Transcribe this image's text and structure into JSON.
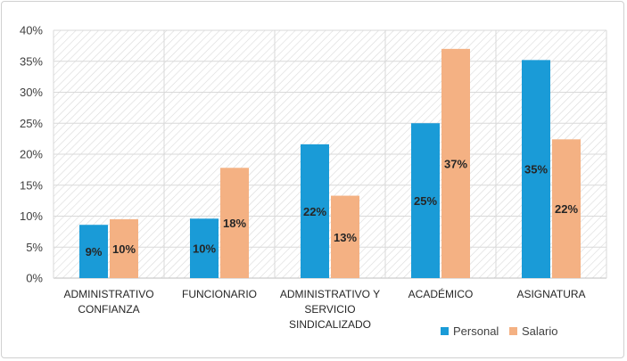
{
  "chart_data": {
    "type": "bar",
    "title": "",
    "xlabel": "",
    "ylabel": "",
    "categories": [
      [
        "ADMINISTRATIVO",
        "CONFIANZA"
      ],
      [
        "FUNCIONARIO"
      ],
      [
        "ADMINISTRATIVO Y",
        "SERVICIO",
        "SINDICALIZADO"
      ],
      [
        "ACADÉMICO"
      ],
      [
        "ASIGNATURA"
      ]
    ],
    "series": [
      {
        "name": "Personal",
        "color": "#1a9bd7",
        "values": [
          8.6,
          9.6,
          21.6,
          25.0,
          35.2
        ],
        "labels": [
          "9%",
          "10%",
          "22%",
          "25%",
          "35%"
        ]
      },
      {
        "name": "Salario",
        "color": "#f4b183",
        "values": [
          9.5,
          17.8,
          13.3,
          37.0,
          22.4
        ],
        "labels": [
          "10%",
          "18%",
          "13%",
          "37%",
          "22%"
        ]
      }
    ],
    "ylim": [
      0,
      40
    ],
    "yticks": [
      "0%",
      "5%",
      "10%",
      "15%",
      "20%",
      "25%",
      "30%",
      "35%",
      "40%"
    ],
    "grid": true,
    "legend_position": "bottom-right"
  }
}
